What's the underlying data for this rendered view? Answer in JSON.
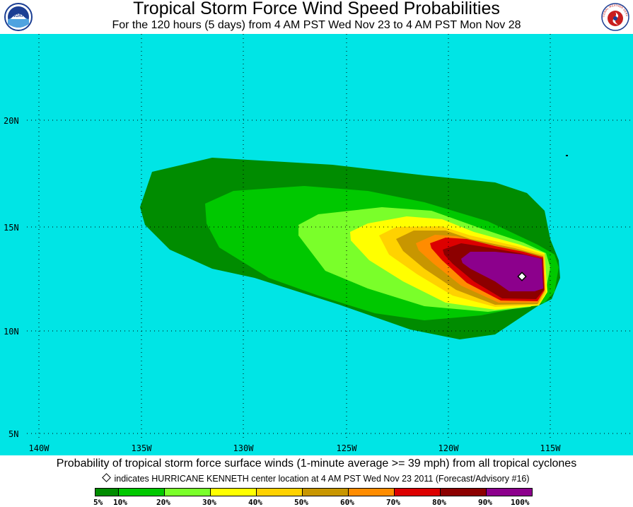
{
  "header": {
    "title": "Tropical Storm Force Wind Speed Probabilities",
    "subtitle": "For the 120 hours (5 days) from 4 AM PST Wed Nov 23 to 4 AM PST Mon Nov 28",
    "logo_left_text": "NOAA",
    "logo_right_text": "NATIONAL WEATHER SERVICE"
  },
  "map": {
    "ocean_color": "#00e5e5",
    "longitude_labels": [
      "140W",
      "135W",
      "130W",
      "125W",
      "120W",
      "115W"
    ],
    "latitude_labels": [
      "20N",
      "15N",
      "10N",
      "5N"
    ],
    "storm_center_symbol": "diamond"
  },
  "footer": {
    "caption": "Probability of tropical storm force surface winds (1-minute average >= 39 mph) from all tropical cyclones",
    "note": "indicates HURRICANE KENNETH center location at 4 AM PST Wed Nov 23 2011 (Forecast/Advisory #16)"
  },
  "legend": {
    "colors": [
      "#008c00",
      "#00c800",
      "#7aff2a",
      "#ffff00",
      "#ffd200",
      "#c89600",
      "#ff8c00",
      "#dc0000",
      "#8c0000",
      "#8c008c"
    ],
    "labels": [
      "5%",
      "10%",
      "20%",
      "30%",
      "40%",
      "50%",
      "60%",
      "70%",
      "80%",
      "90%",
      "100%"
    ]
  }
}
